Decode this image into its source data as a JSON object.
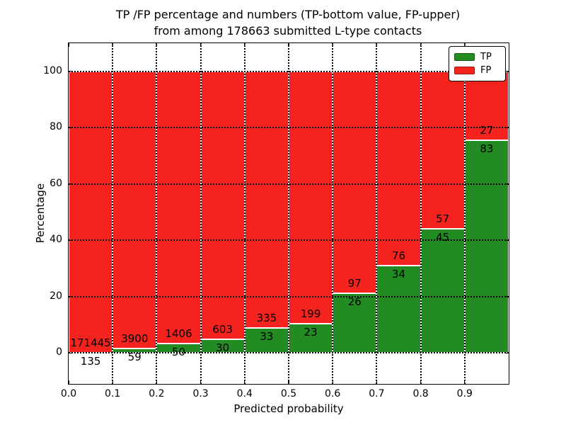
{
  "title": {
    "lines": [
      "TP /FP percentage and numbers (TP-bottom value, FP-upper)",
      "from among 178663 submitted L-type contacts"
    ]
  },
  "chart_data": {
    "type": "bar",
    "stacked": true,
    "title": "TP /FP percentage and numbers (TP-bottom value, FP-upper)\nfrom among 178663 submitted L-type contacts",
    "total_submitted_contacts": 178663,
    "xlabel": "Predicted probability",
    "ylabel": "Percentage",
    "bin_starts": [
      0.0,
      0.1,
      0.2,
      0.3,
      0.4,
      0.5,
      0.6,
      0.7,
      0.8,
      0.9
    ],
    "bin_width": 0.1,
    "series": [
      {
        "name": "TP",
        "color": "#228b22",
        "counts": [
          135,
          59,
          50,
          30,
          33,
          23,
          26,
          34,
          45,
          83
        ]
      },
      {
        "name": "FP",
        "color": "#f5231e",
        "counts": [
          171445,
          3900,
          1406,
          603,
          335,
          199,
          97,
          76,
          57,
          27
        ]
      }
    ],
    "tp_percentages": [
      0.08,
      1.49,
      3.43,
      4.74,
      8.97,
      10.36,
      21.14,
      30.91,
      44.12,
      75.45
    ],
    "xticks": [
      "0.0",
      "0.1",
      "0.2",
      "0.3",
      "0.4",
      "0.5",
      "0.6",
      "0.7",
      "0.8",
      "0.9"
    ],
    "yticks": [
      0,
      20,
      40,
      60,
      80,
      100
    ],
    "xlim": [
      0,
      1
    ],
    "ylim": [
      -11,
      110
    ],
    "grid": "dotted",
    "legend": {
      "position": "upper right",
      "entries": [
        {
          "label": "TP",
          "color": "#228b22"
        },
        {
          "label": "FP",
          "color": "#f5231e"
        }
      ]
    }
  }
}
